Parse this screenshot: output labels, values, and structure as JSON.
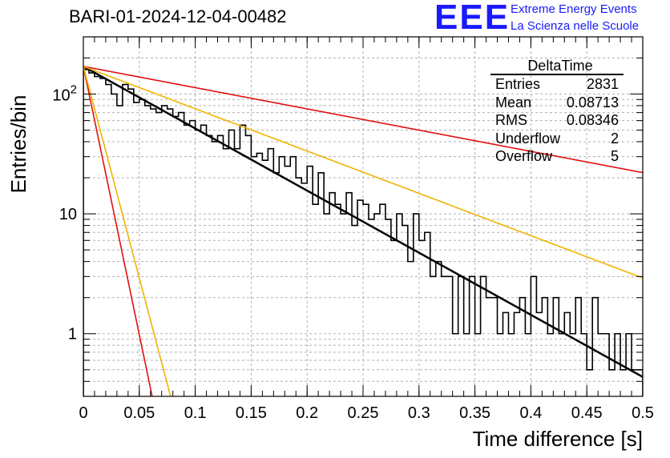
{
  "title": "BARI-01-2024-12-04-00482",
  "logo": {
    "text": "EEE",
    "line1": "Extreme Energy Events",
    "line2": "La Scienza nelle Scuole",
    "color": "#1a1aff"
  },
  "stats_box": {
    "name": "DeltaTime",
    "rows": [
      {
        "label": "Entries",
        "value": "2831"
      },
      {
        "label": "Mean",
        "value": "0.08713"
      },
      {
        "label": "RMS",
        "value": "0.08346"
      },
      {
        "label": "Underflow",
        "value": "2"
      },
      {
        "label": "Overflow",
        "value": "5"
      }
    ]
  },
  "chart_data": {
    "type": "line",
    "title": "BARI-01-2024-12-04-00482",
    "xlabel": "Time difference [s]",
    "ylabel": "Entries/bin",
    "xlim": [
      0,
      0.5
    ],
    "ylim": [
      0.3,
      300
    ],
    "yscale": "log",
    "grid": true,
    "x_ticks": [
      "0",
      "0.05",
      "0.1",
      "0.15",
      "0.2",
      "0.25",
      "0.3",
      "0.35",
      "0.4",
      "0.45",
      "0.5"
    ],
    "y_ticks": [
      {
        "value": 1,
        "label": "1"
      },
      {
        "value": 10,
        "label": "10"
      },
      {
        "value": 100,
        "label": "10^2"
      }
    ],
    "histogram": {
      "name": "DeltaTime",
      "bin_width": 0.005,
      "color": "#000000",
      "counts": [
        160,
        150,
        140,
        135,
        120,
        100,
        80,
        120,
        110,
        85,
        90,
        80,
        75,
        70,
        80,
        75,
        65,
        70,
        55,
        60,
        50,
        55,
        45,
        40,
        45,
        35,
        50,
        35,
        55,
        45,
        30,
        32,
        28,
        35,
        22,
        30,
        25,
        30,
        20,
        18,
        25,
        12,
        22,
        10,
        15,
        12,
        10,
        15,
        8,
        13,
        12,
        9,
        10,
        12,
        9,
        6,
        10,
        8,
        4,
        10,
        6,
        7,
        3,
        4,
        3,
        3,
        1,
        3,
        1,
        3,
        1,
        3,
        2,
        2,
        1,
        1.5,
        1,
        1.5,
        2,
        1,
        3,
        1.5,
        2,
        1,
        2,
        1,
        1.5,
        1,
        2,
        1,
        0.5,
        2,
        1,
        1,
        0.5,
        1,
        0.5,
        1,
        0.5,
        0.5
      ],
      "label_text": "DeltaTime"
    },
    "series": [
      {
        "name": "fit",
        "color": "#000000",
        "width": 2.5,
        "type": "exp",
        "A": 170,
        "tau": 0.0838
      },
      {
        "name": "upper-slow",
        "color": "#e01010",
        "width": 1.6,
        "type": "exp",
        "A": 170,
        "tau": 0.245
      },
      {
        "name": "lower-slow",
        "color": "#f0b400",
        "width": 1.6,
        "type": "exp",
        "A": 170,
        "tau": 0.123
      },
      {
        "name": "upper-fast",
        "color": "#e01010",
        "width": 1.6,
        "type": "exp",
        "A": 170,
        "tau": 0.0097
      },
      {
        "name": "lower-fast",
        "color": "#f0b400",
        "width": 1.6,
        "type": "exp",
        "A": 170,
        "tau": 0.0123
      }
    ]
  }
}
